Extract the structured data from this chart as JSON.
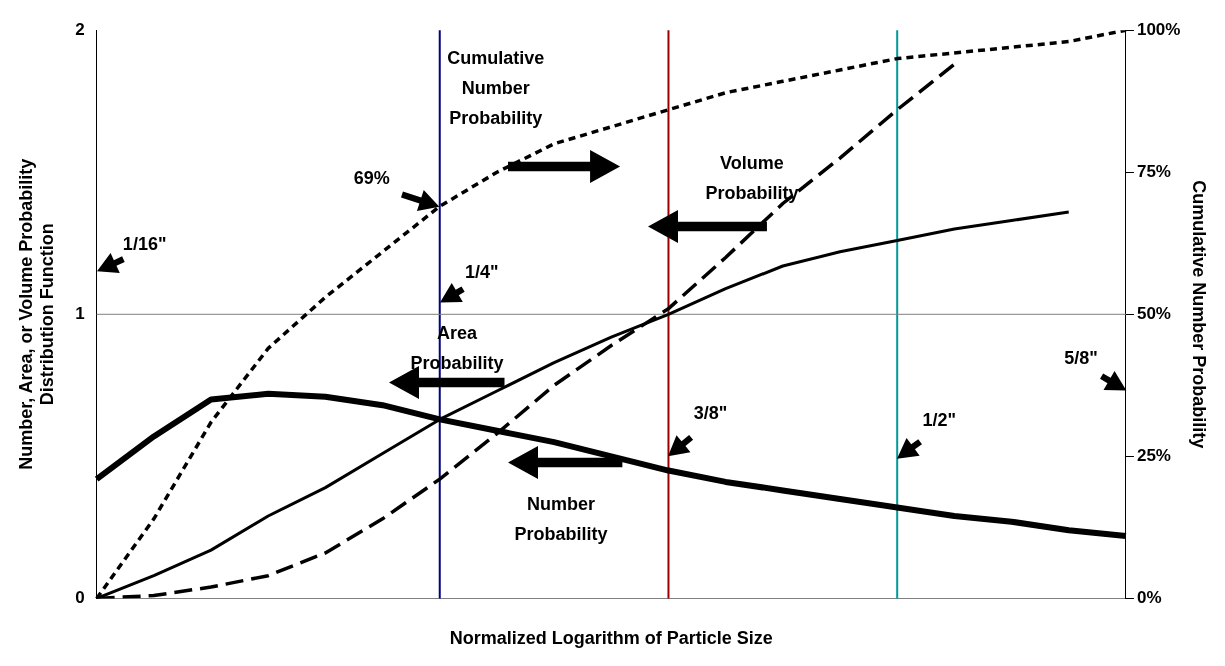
{
  "chart_data": {
    "type": "line",
    "xlabel": "Normalized Logarithm of Particle Size",
    "ylabel": "Number, Area, or Volume Probability Distribution Function",
    "y2label": "Cumulative Number Probability",
    "categories": [
      null,
      null,
      null,
      null,
      null,
      null,
      null,
      null,
      null,
      null,
      null,
      null,
      null,
      null,
      null,
      null,
      null,
      null,
      null
    ],
    "ylim": [
      0,
      2
    ],
    "yticks": [
      0,
      1,
      2
    ],
    "y2lim": [
      0,
      100
    ],
    "y2ticks": [
      {
        "value": 0,
        "label": "0%"
      },
      {
        "value": 25,
        "label": "25%"
      },
      {
        "value": 50,
        "label": "50%"
      },
      {
        "value": 75,
        "label": "75%"
      },
      {
        "value": 100,
        "label": "100%"
      }
    ],
    "tick_labels": "y",
    "legend": false,
    "marker": "none",
    "series": [
      {
        "color": "#000000",
        "line_style": "solid",
        "values": [
          0.42,
          0.57,
          0.7,
          0.72,
          0.71,
          0.68,
          0.63,
          0.59,
          0.55,
          0.5,
          0.45,
          0.41,
          0.38,
          0.35,
          0.32,
          0.29,
          0.27,
          0.24,
          0.22
        ]
      },
      {
        "color": "#000000",
        "line_style": "solid",
        "values": [
          0,
          0.08,
          0.17,
          0.29,
          0.39,
          0.51,
          0.63,
          0.73,
          0.83,
          0.92,
          1,
          1.09,
          1.17,
          1.22,
          1.26,
          1.3,
          1.33,
          1.36,
          null
        ]
      },
      {
        "color": "#000000",
        "line_style": "dashed",
        "values": [
          0,
          0.01,
          0.04,
          0.08,
          0.16,
          0.28,
          0.42,
          0.58,
          0.75,
          0.89,
          1.02,
          1.2,
          1.39,
          1.55,
          1.72,
          1.88,
          null,
          null,
          null
        ]
      },
      {
        "color": "#000000",
        "line_style": "dotted",
        "axis": "y2",
        "values": [
          0,
          14,
          31,
          44,
          53,
          61,
          69,
          75,
          80,
          83,
          86,
          89,
          91,
          93,
          95,
          96,
          97,
          98,
          100
        ]
      }
    ],
    "ref_lines": [
      {
        "axis": "y",
        "value": 1,
        "color": "#808080"
      }
    ],
    "annotations": [
      "Cumulative Number Probability",
      "Volume Probability",
      "Area Probability",
      "Number Probability",
      "69%",
      "1/16\"",
      "1/4\"",
      "3/8\"",
      "1/2\"",
      "5/8\""
    ]
  }
}
